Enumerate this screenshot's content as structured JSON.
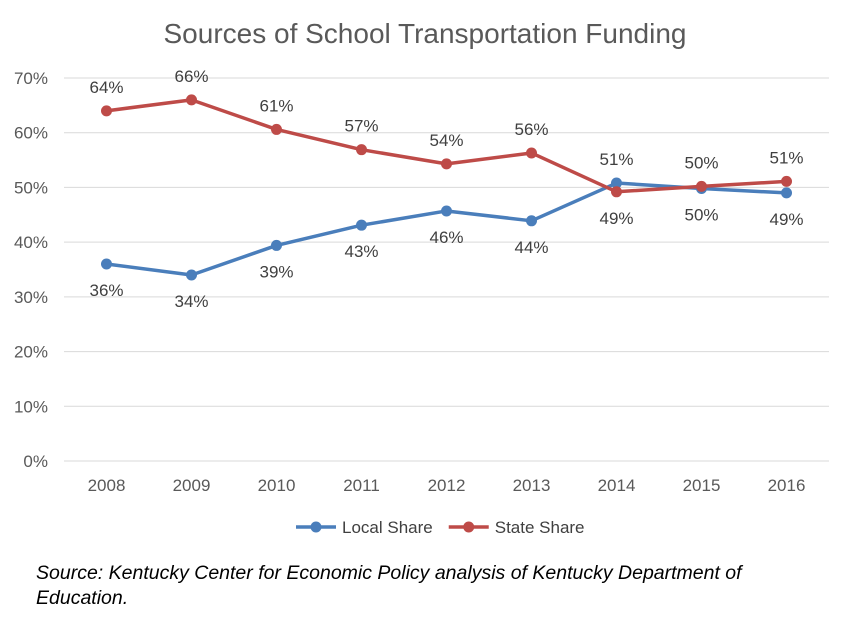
{
  "chart_data": {
    "type": "line",
    "title": "Sources of School Transportation Funding",
    "xlabel": "",
    "ylabel": "",
    "categories": [
      "2008",
      "2009",
      "2010",
      "2011",
      "2012",
      "2013",
      "2014",
      "2015",
      "2016"
    ],
    "ylim": [
      0,
      70
    ],
    "yticks": [
      "0%",
      "10%",
      "20%",
      "30%",
      "40%",
      "50%",
      "60%",
      "70%"
    ],
    "grid": true,
    "legend_position": "bottom",
    "series": [
      {
        "name": "Local Share",
        "color": "#4a7ebb",
        "values": [
          36,
          34,
          39.4,
          43.1,
          45.7,
          43.9,
          50.8,
          49.8,
          49
        ],
        "labels": [
          "36%",
          "34%",
          "39%",
          "43%",
          "46%",
          "44%",
          "51%",
          "50%",
          "49%"
        ]
      },
      {
        "name": "State Share",
        "color": "#be4b48",
        "values": [
          64,
          66,
          60.6,
          56.9,
          54.3,
          56.3,
          49.2,
          50.2,
          51.1
        ],
        "labels": [
          "64%",
          "66%",
          "61%",
          "57%",
          "54%",
          "56%",
          "49%",
          "50%",
          "51%"
        ]
      }
    ]
  },
  "source_note": "Source: Kentucky Center for Economic Policy analysis of Kentucky Department of Education."
}
